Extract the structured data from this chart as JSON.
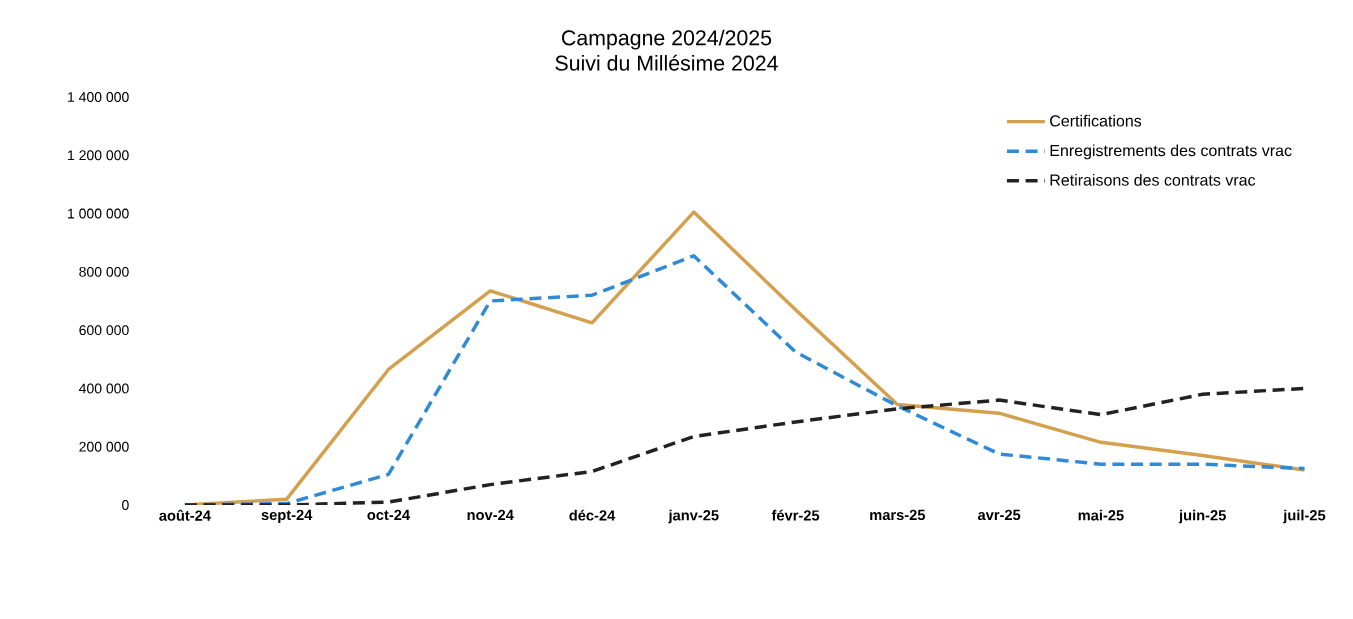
{
  "chart_data": {
    "type": "line",
    "title": "Campagne 2024/2025",
    "subtitle": "Suivi du Millésime 2024",
    "categories": [
      "août-24",
      "sept-24",
      "oct-24",
      "nov-24",
      "déc-24",
      "janv-25",
      "févr-25",
      "mars-25",
      "avr-25",
      "mai-25",
      "juin-25",
      "juil-25"
    ],
    "series": [
      {
        "name": "Certifications",
        "color": "#d4a04e",
        "line_style": "solid",
        "values": [
          0,
          20000,
          465000,
          735000,
          625000,
          1005000,
          670000,
          345000,
          315000,
          215000,
          170000,
          120000
        ]
      },
      {
        "name": "Enregistrements des contrats vrac",
        "color": "#2f8ad8",
        "line_style": "dashed",
        "values": [
          0,
          5000,
          105000,
          700000,
          720000,
          855000,
          525000,
          340000,
          175000,
          140000,
          140000,
          125000
        ]
      },
      {
        "name": "Retiraisons des contrats vrac",
        "color": "#222222",
        "line_style": "dashed",
        "values": [
          0,
          0,
          10000,
          70000,
          115000,
          235000,
          285000,
          330000,
          360000,
          310000,
          380000,
          400000
        ]
      }
    ],
    "ylim": [
      0,
      1400000
    ],
    "yticks": [
      0,
      {
        "value": 200000,
        "label": "200 000"
      },
      {
        "value": 400000,
        "label": "400 000"
      },
      {
        "value": 600000,
        "label": "600 000"
      },
      {
        "value": 800000,
        "label": "800 000"
      },
      {
        "value": 1000000,
        "label": "1 000 000"
      },
      {
        "value": 1200000,
        "label": "1 200 000"
      },
      {
        "value": 1400000,
        "label": "1 400 000"
      }
    ],
    "grid": false,
    "legend": "top right"
  }
}
